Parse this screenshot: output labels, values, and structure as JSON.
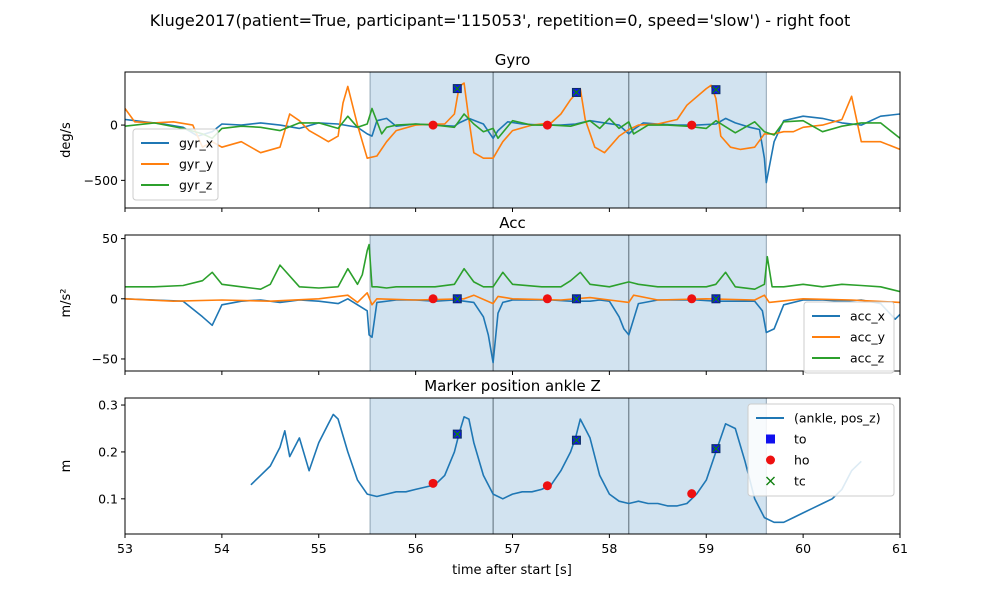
{
  "figure_title": "Kluge2017(patient=True, participant='115053', repetition=0, speed='slow') - right foot",
  "xlabel": "time after start [s]",
  "colors": {
    "blue": "#1f77b4",
    "orange": "#ff7f0e",
    "green": "#2ca02c",
    "span": "#d2e3f0",
    "divider": "#6f7f8a",
    "to_marker": "#1010ee",
    "ho_marker": "#ee1010",
    "tc_marker": "#108010"
  },
  "chart_data": [
    {
      "type": "line",
      "title": "Gyro",
      "ylabel": "deg/s",
      "xlim": [
        53,
        61
      ],
      "ylim": [
        -750,
        480
      ],
      "yticks": [
        -500,
        0
      ],
      "xticks": [
        53,
        54,
        55,
        56,
        57,
        58,
        59,
        60,
        61
      ],
      "show_xtick_labels": false,
      "legend_position": "lower-left",
      "shaded_span": [
        55.53,
        59.62
      ],
      "dividers": [
        56.8,
        58.2
      ],
      "series": [
        {
          "name": "gyr_x",
          "color": "#1f77b4",
          "x": [
            53.0,
            53.2,
            53.4,
            53.6,
            53.75,
            53.9,
            54.0,
            54.2,
            54.4,
            54.6,
            54.8,
            55.0,
            55.2,
            55.4,
            55.5,
            55.55,
            55.6,
            55.7,
            55.8,
            55.9,
            56.0,
            56.2,
            56.4,
            56.45,
            56.55,
            56.7,
            56.8,
            56.85,
            56.95,
            57.1,
            57.3,
            57.5,
            57.65,
            57.8,
            57.95,
            58.1,
            58.2,
            58.25,
            58.35,
            58.5,
            58.7,
            58.9,
            59.1,
            59.2,
            59.3,
            59.45,
            59.55,
            59.6,
            59.62,
            59.7,
            59.8,
            60.0,
            60.2,
            60.4,
            60.6,
            60.8,
            61.0
          ],
          "y": [
            50,
            30,
            10,
            -20,
            -100,
            -60,
            10,
            0,
            20,
            0,
            -30,
            20,
            10,
            -20,
            -80,
            -100,
            40,
            60,
            -10,
            0,
            10,
            0,
            -10,
            20,
            60,
            10,
            -120,
            -50,
            30,
            10,
            0,
            0,
            10,
            40,
            20,
            0,
            -80,
            -40,
            20,
            10,
            0,
            0,
            10,
            60,
            20,
            -20,
            -40,
            -300,
            -520,
            -150,
            40,
            80,
            60,
            20,
            0,
            80,
            100
          ]
        },
        {
          "name": "gyr_y",
          "color": "#ff7f0e",
          "x": [
            53.0,
            53.1,
            53.3,
            53.5,
            53.7,
            53.8,
            53.9,
            54.0,
            54.2,
            54.4,
            54.6,
            54.7,
            54.8,
            54.9,
            55.0,
            55.1,
            55.2,
            55.25,
            55.3,
            55.4,
            55.5,
            55.6,
            55.7,
            55.8,
            56.0,
            56.2,
            56.3,
            56.4,
            56.45,
            56.5,
            56.55,
            56.6,
            56.7,
            56.8,
            56.9,
            57.0,
            57.2,
            57.4,
            57.5,
            57.6,
            57.7,
            57.75,
            57.85,
            57.95,
            58.0,
            58.1,
            58.2,
            58.3,
            58.5,
            58.7,
            58.8,
            59.0,
            59.05,
            59.1,
            59.15,
            59.25,
            59.35,
            59.5,
            59.6,
            59.7,
            59.8,
            59.9,
            60.0,
            60.2,
            60.4,
            60.5,
            60.6,
            60.8,
            61.0
          ],
          "y": [
            150,
            30,
            20,
            30,
            0,
            -200,
            -150,
            -200,
            -150,
            -250,
            -200,
            100,
            40,
            -50,
            -100,
            -150,
            -100,
            200,
            350,
            0,
            -300,
            -280,
            -150,
            -50,
            0,
            10,
            10,
            100,
            350,
            380,
            50,
            -250,
            -300,
            -300,
            -150,
            -50,
            0,
            20,
            100,
            230,
            330,
            50,
            -200,
            -250,
            -200,
            -100,
            -40,
            0,
            10,
            50,
            180,
            330,
            360,
            240,
            -100,
            -200,
            -220,
            -200,
            -80,
            -80,
            -60,
            -60,
            -20,
            0,
            50,
            260,
            -150,
            -150,
            -220
          ]
        },
        {
          "name": "gyr_z",
          "color": "#2ca02c",
          "x": [
            53.0,
            53.3,
            53.6,
            53.8,
            53.9,
            54.0,
            54.2,
            54.4,
            54.6,
            54.8,
            55.0,
            55.2,
            55.3,
            55.4,
            55.5,
            55.55,
            55.65,
            55.7,
            55.8,
            56.0,
            56.2,
            56.4,
            56.5,
            56.6,
            56.7,
            56.8,
            56.85,
            57.0,
            57.2,
            57.4,
            57.6,
            57.8,
            57.9,
            58.0,
            58.1,
            58.2,
            58.25,
            58.4,
            58.6,
            58.8,
            59.0,
            59.1,
            59.3,
            59.5,
            59.6,
            59.7,
            59.8,
            60.0,
            60.2,
            60.4,
            60.6,
            60.8,
            61.0
          ],
          "y": [
            -10,
            20,
            -30,
            -80,
            -120,
            -30,
            -10,
            -20,
            -50,
            20,
            20,
            -30,
            80,
            -20,
            10,
            150,
            -80,
            -20,
            0,
            10,
            0,
            -20,
            100,
            10,
            -60,
            -30,
            -120,
            40,
            0,
            0,
            -10,
            40,
            -30,
            60,
            -30,
            30,
            -80,
            0,
            0,
            -10,
            -30,
            40,
            -70,
            30,
            -60,
            -90,
            30,
            40,
            -60,
            -10,
            20,
            20,
            -120
          ]
        }
      ],
      "markers": [
        {
          "label": "to",
          "x": [
            56.43,
            57.66,
            59.1
          ],
          "y": [
            330,
            295,
            320
          ]
        },
        {
          "label": "ho",
          "x": [
            56.18,
            57.36,
            58.85
          ],
          "y": [
            0,
            0,
            0
          ]
        }
      ]
    },
    {
      "type": "line",
      "title": "Acc",
      "ylabel": "m/s²",
      "xlim": [
        53,
        61
      ],
      "ylim": [
        -60,
        53
      ],
      "yticks": [
        -50,
        0,
        50
      ],
      "xticks": [
        53,
        54,
        55,
        56,
        57,
        58,
        59,
        60,
        61
      ],
      "show_xtick_labels": false,
      "legend_position": "lower-right",
      "shaded_span": [
        55.53,
        59.62
      ],
      "dividers": [
        56.8,
        58.2
      ],
      "series": [
        {
          "name": "acc_x",
          "color": "#1f77b4",
          "x": [
            53.0,
            53.3,
            53.6,
            53.8,
            53.9,
            54.0,
            54.2,
            54.4,
            54.6,
            54.8,
            55.0,
            55.2,
            55.3,
            55.4,
            55.5,
            55.52,
            55.55,
            55.6,
            55.8,
            56.0,
            56.2,
            56.4,
            56.5,
            56.6,
            56.7,
            56.75,
            56.8,
            56.85,
            56.9,
            57.0,
            57.2,
            57.4,
            57.6,
            57.8,
            57.9,
            58.0,
            58.1,
            58.15,
            58.2,
            58.3,
            58.5,
            58.7,
            58.9,
            59.1,
            59.3,
            59.5,
            59.58,
            59.62,
            59.7,
            59.8,
            60.0,
            60.2,
            60.4,
            60.6,
            60.8,
            60.95,
            61.0
          ],
          "y": [
            0,
            -1,
            -2,
            -15,
            -22,
            -5,
            -2,
            -1,
            -3,
            -1,
            -2,
            -4,
            0,
            -5,
            -10,
            -30,
            -32,
            -3,
            -1,
            -1,
            -2,
            -1,
            -2,
            -3,
            -15,
            -30,
            -53,
            -12,
            -3,
            -1,
            -1,
            -1,
            -2,
            -2,
            -1,
            -2,
            -15,
            -25,
            -30,
            -4,
            -1,
            -1,
            -1,
            -2,
            -2,
            -2,
            -10,
            -28,
            -25,
            -5,
            -1,
            -1,
            -2,
            -1,
            -4,
            -17,
            -13
          ]
        },
        {
          "name": "acc_y",
          "color": "#ff7f0e",
          "x": [
            53.0,
            53.5,
            54.0,
            54.5,
            55.0,
            55.3,
            55.4,
            55.5,
            55.55,
            55.6,
            56.0,
            56.5,
            56.6,
            56.8,
            56.85,
            57.0,
            57.5,
            57.8,
            58.0,
            58.2,
            58.25,
            58.5,
            59.0,
            59.5,
            59.6,
            59.65,
            60.0,
            60.5,
            61.0
          ],
          "y": [
            0,
            -2,
            -1,
            -2,
            0,
            3,
            -3,
            5,
            -5,
            0,
            -1,
            0,
            3,
            -4,
            2,
            0,
            -1,
            1,
            -1,
            -3,
            3,
            -1,
            0,
            -1,
            3,
            -3,
            0,
            -1,
            -3
          ]
        },
        {
          "name": "acc_z",
          "color": "#2ca02c",
          "x": [
            53.0,
            53.3,
            53.6,
            53.8,
            53.9,
            54.0,
            54.2,
            54.4,
            54.5,
            54.6,
            54.8,
            55.0,
            55.2,
            55.3,
            55.4,
            55.45,
            55.5,
            55.52,
            55.55,
            55.6,
            55.7,
            55.8,
            56.0,
            56.2,
            56.4,
            56.5,
            56.6,
            56.7,
            56.8,
            56.9,
            57.0,
            57.3,
            57.5,
            57.6,
            57.7,
            57.8,
            58.0,
            58.2,
            58.3,
            58.5,
            58.8,
            59.0,
            59.1,
            59.2,
            59.3,
            59.5,
            59.6,
            59.63,
            59.68,
            59.8,
            60.0,
            60.2,
            60.4,
            60.6,
            60.8,
            61.0
          ],
          "y": [
            10,
            10,
            11,
            15,
            22,
            12,
            10,
            8,
            12,
            28,
            10,
            9,
            10,
            25,
            12,
            20,
            40,
            45,
            10,
            10,
            9,
            10,
            10,
            10,
            12,
            25,
            14,
            10,
            10,
            22,
            12,
            10,
            10,
            15,
            22,
            12,
            10,
            14,
            12,
            10,
            10,
            10,
            12,
            22,
            10,
            8,
            12,
            35,
            10,
            10,
            12,
            10,
            12,
            11,
            10,
            6
          ]
        }
      ],
      "markers": [
        {
          "label": "to",
          "x": [
            56.43,
            57.66,
            59.1
          ],
          "y": [
            0,
            0,
            0
          ]
        },
        {
          "label": "ho",
          "x": [
            56.18,
            57.36,
            58.85
          ],
          "y": [
            0,
            0,
            0
          ]
        }
      ]
    },
    {
      "type": "line",
      "title": "Marker position ankle Z",
      "ylabel": "m",
      "xlim": [
        53,
        61
      ],
      "ylim": [
        0.025,
        0.315
      ],
      "yticks": [
        0.1,
        0.2,
        0.3
      ],
      "xticks": [
        53,
        54,
        55,
        56,
        57,
        58,
        59,
        60,
        61
      ],
      "show_xtick_labels": true,
      "legend_position": "upper-right",
      "shaded_span": [
        55.53,
        59.62
      ],
      "dividers": [
        56.8,
        58.2
      ],
      "series": [
        {
          "name": "(ankle, pos_z)",
          "color": "#1f77b4",
          "x": [
            54.3,
            54.4,
            54.5,
            54.6,
            54.65,
            54.7,
            54.8,
            54.9,
            55.0,
            55.1,
            55.15,
            55.2,
            55.3,
            55.4,
            55.5,
            55.6,
            55.7,
            55.8,
            55.9,
            56.0,
            56.1,
            56.2,
            56.3,
            56.4,
            56.45,
            56.5,
            56.55,
            56.6,
            56.7,
            56.8,
            56.9,
            57.0,
            57.1,
            57.2,
            57.3,
            57.4,
            57.5,
            57.6,
            57.65,
            57.7,
            57.8,
            57.9,
            58.0,
            58.1,
            58.2,
            58.3,
            58.4,
            58.5,
            58.6,
            58.7,
            58.8,
            58.9,
            59.0,
            59.1,
            59.2,
            59.3,
            59.4,
            59.5,
            59.6,
            59.7,
            59.8,
            59.9,
            60.0,
            60.1,
            60.2,
            60.3,
            60.4,
            60.5,
            60.6
          ],
          "y": [
            0.13,
            0.15,
            0.17,
            0.21,
            0.245,
            0.19,
            0.23,
            0.16,
            0.22,
            0.26,
            0.28,
            0.27,
            0.2,
            0.14,
            0.11,
            0.105,
            0.11,
            0.115,
            0.115,
            0.12,
            0.125,
            0.13,
            0.15,
            0.2,
            0.24,
            0.275,
            0.27,
            0.22,
            0.15,
            0.11,
            0.1,
            0.11,
            0.115,
            0.115,
            0.12,
            0.13,
            0.16,
            0.2,
            0.23,
            0.27,
            0.23,
            0.15,
            0.11,
            0.095,
            0.09,
            0.095,
            0.09,
            0.09,
            0.085,
            0.085,
            0.09,
            0.11,
            0.14,
            0.2,
            0.26,
            0.25,
            0.18,
            0.1,
            0.06,
            0.05,
            0.05,
            0.06,
            0.07,
            0.08,
            0.09,
            0.1,
            0.12,
            0.16,
            0.18
          ]
        }
      ],
      "markers": [
        {
          "label": "to",
          "x": [
            56.43,
            57.66,
            59.1
          ],
          "y": [
            0.238,
            0.225,
            0.207
          ]
        },
        {
          "label": "ho",
          "x": [
            56.18,
            57.36,
            58.85
          ],
          "y": [
            0.133,
            0.128,
            0.111
          ]
        }
      ],
      "legend_entries": [
        {
          "label": "(ankle, pos_z)",
          "kind": "line",
          "color": "#1f77b4"
        },
        {
          "label": "to",
          "kind": "square",
          "color": "#1010ee"
        },
        {
          "label": "ho",
          "kind": "circle",
          "color": "#ee1010"
        },
        {
          "label": "tc",
          "kind": "x",
          "color": "#108010"
        }
      ]
    }
  ]
}
